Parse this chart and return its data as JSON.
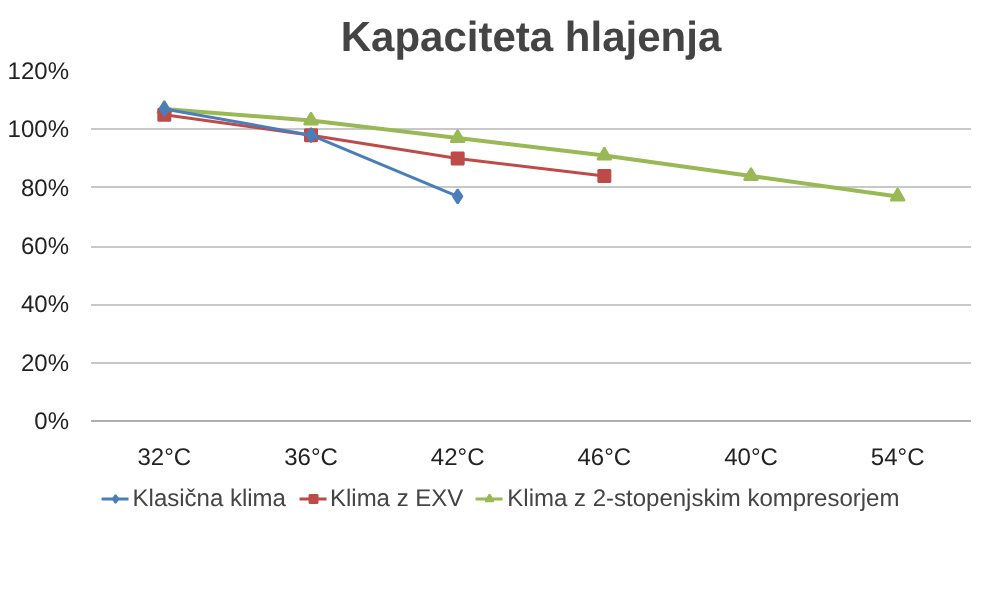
{
  "chart_data": {
    "type": "line",
    "title": "Kapaciteta hlajenja",
    "categories": [
      "32°C",
      "36°C",
      "42°C",
      "46°C",
      "40°C",
      "54°C"
    ],
    "series": [
      {
        "name": "Klasična klima",
        "color": "#4a7ebb",
        "marker": "diamond",
        "values": [
          107,
          98,
          77,
          null,
          null,
          null
        ]
      },
      {
        "name": "Klima z EXV",
        "color": "#be4b48",
        "marker": "square",
        "values": [
          105,
          98,
          90,
          84,
          null,
          null
        ]
      },
      {
        "name": "Klima z 2-stopenjskim kompresorjem",
        "color": "#98b954",
        "marker": "triangle",
        "values": [
          107,
          103,
          97,
          91,
          84,
          77
        ]
      }
    ],
    "ylim": [
      0,
      120
    ],
    "yticks": [
      {
        "value": 0,
        "label": "0%"
      },
      {
        "value": 20,
        "label": "20%"
      },
      {
        "value": 40,
        "label": "40%"
      },
      {
        "value": 60,
        "label": "60%"
      },
      {
        "value": 80,
        "label": "80%"
      },
      {
        "value": 100,
        "label": "100%"
      },
      {
        "value": 120,
        "label": "120%"
      }
    ],
    "grid": "y",
    "legend": "bottom"
  }
}
